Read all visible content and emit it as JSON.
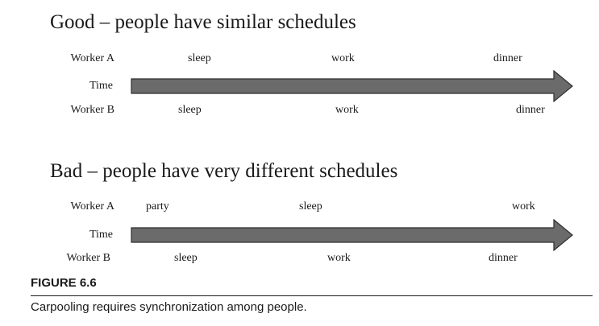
{
  "good": {
    "title": "Good – people have similar schedules",
    "worker_a": {
      "label": "Worker A",
      "activities": [
        "sleep",
        "work",
        "dinner"
      ]
    },
    "time_label": "Time",
    "worker_b": {
      "label": "Worker B",
      "activities": [
        "sleep",
        "work",
        "dinner"
      ]
    }
  },
  "bad": {
    "title": "Bad – people have very different schedules",
    "worker_a": {
      "label": "Worker A",
      "activities": [
        "party",
        "sleep",
        "work"
      ]
    },
    "time_label": "Time",
    "worker_b": {
      "label": "Worker B",
      "activities": [
        "sleep",
        "work",
        "dinner"
      ]
    }
  },
  "figure": {
    "label": "FIGURE 6.6",
    "caption": "Carpooling requires synchronization among people."
  },
  "colors": {
    "arrow_fill": "#6b6b6b",
    "arrow_stroke": "#2e2e2e",
    "text": "#1a1a1a"
  }
}
